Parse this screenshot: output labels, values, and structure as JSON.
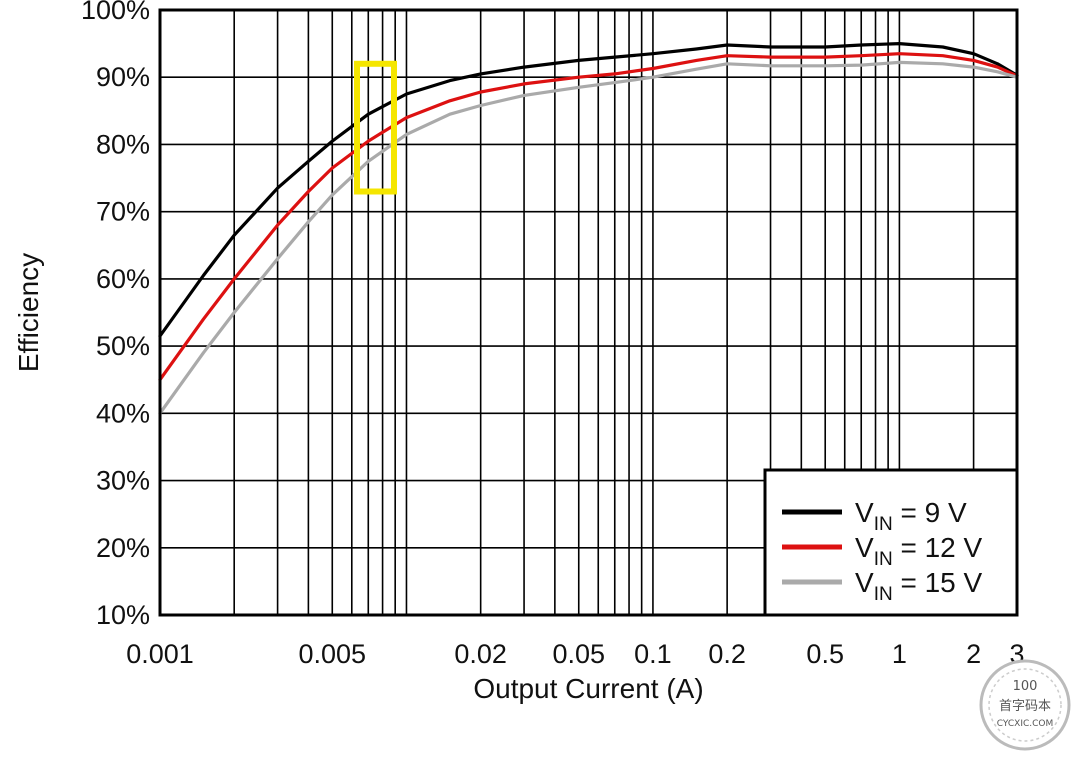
{
  "chart_data": {
    "type": "line",
    "title": "",
    "xlabel": "Output Current (A)",
    "ylabel": "Efficiency",
    "x_scale": "log",
    "xlim": [
      0.001,
      3
    ],
    "ylim": [
      10,
      100
    ],
    "grid": true,
    "x_ticks": [
      0.001,
      0.005,
      0.02,
      0.05,
      0.1,
      0.2,
      0.5,
      1,
      2,
      3
    ],
    "x_tick_labels": [
      "0.001",
      "0.005",
      "0.02",
      "0.05",
      "0.1",
      "0.2",
      "0.5",
      "1",
      "2",
      "3"
    ],
    "y_ticks": [
      10,
      20,
      30,
      40,
      50,
      60,
      70,
      80,
      90,
      100
    ],
    "y_tick_labels": [
      "10%",
      "20%",
      "30%",
      "40%",
      "50%",
      "60%",
      "70%",
      "80%",
      "90%",
      "100%"
    ],
    "legend": {
      "placement": "bottom-right",
      "entries": [
        {
          "prefix": "V",
          "sub": "IN",
          "suffix": " = 9 V"
        },
        {
          "prefix": "V",
          "sub": "IN",
          "suffix": " = 12 V"
        },
        {
          "prefix": "V",
          "sub": "IN",
          "suffix": " = 15 V"
        }
      ]
    },
    "series": [
      {
        "name": "VIN = 9 V",
        "color": "#000000",
        "x": [
          0.001,
          0.0015,
          0.002,
          0.003,
          0.004,
          0.005,
          0.007,
          0.01,
          0.015,
          0.02,
          0.03,
          0.05,
          0.07,
          0.1,
          0.15,
          0.2,
          0.3,
          0.5,
          0.7,
          1,
          1.5,
          2,
          2.5,
          3
        ],
        "y": [
          51.5,
          60.5,
          66.5,
          73.5,
          77.5,
          80.5,
          84.5,
          87.5,
          89.5,
          90.5,
          91.5,
          92.5,
          93,
          93.5,
          94.2,
          94.8,
          94.5,
          94.5,
          94.8,
          95,
          94.5,
          93.5,
          92,
          90.3
        ]
      },
      {
        "name": "VIN = 12 V",
        "color": "#dd1111",
        "x": [
          0.001,
          0.0015,
          0.002,
          0.003,
          0.004,
          0.005,
          0.007,
          0.01,
          0.015,
          0.02,
          0.03,
          0.05,
          0.07,
          0.1,
          0.15,
          0.2,
          0.3,
          0.5,
          0.7,
          1,
          1.5,
          2,
          2.5,
          3
        ],
        "y": [
          45,
          54,
          60,
          68,
          73,
          76.5,
          80.5,
          84,
          86.5,
          87.8,
          89,
          90,
          90.5,
          91.3,
          92.5,
          93.2,
          93,
          93,
          93.2,
          93.5,
          93.2,
          92.5,
          91.5,
          90.2
        ]
      },
      {
        "name": "VIN = 15 V",
        "color": "#aaaaaa",
        "x": [
          0.001,
          0.0015,
          0.002,
          0.003,
          0.004,
          0.005,
          0.007,
          0.01,
          0.015,
          0.02,
          0.03,
          0.05,
          0.07,
          0.1,
          0.15,
          0.2,
          0.3,
          0.5,
          0.7,
          1,
          1.5,
          2,
          2.5,
          3
        ],
        "y": [
          40,
          49,
          55,
          63,
          68.5,
          72.5,
          77.5,
          81.5,
          84.5,
          85.8,
          87.3,
          88.5,
          89.2,
          90,
          91.2,
          92,
          91.7,
          91.7,
          91.8,
          92.2,
          92,
          91.5,
          90.8,
          90
        ]
      }
    ],
    "annotations": [
      {
        "type": "highlight-box",
        "color": "#f5e600",
        "x_range": [
          0.0063,
          0.0089
        ],
        "y_range": [
          73,
          92
        ]
      }
    ]
  },
  "watermark": {
    "top": "100",
    "mid": "首字码本",
    "bottom": "CYCXIC.COM"
  }
}
